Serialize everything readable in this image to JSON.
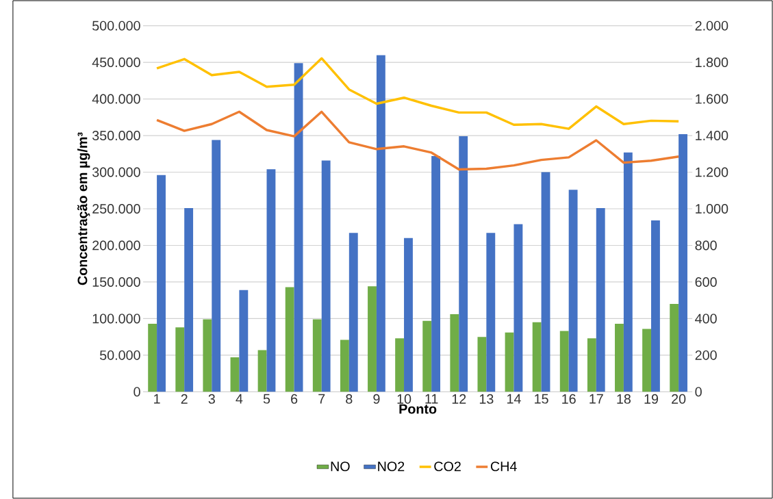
{
  "chart_data": {
    "type": "bar",
    "xlabel": "Ponto",
    "ylabel": "Concentração em µg/m³",
    "categories": [
      "1",
      "2",
      "3",
      "4",
      "5",
      "6",
      "7",
      "8",
      "9",
      "10",
      "11",
      "12",
      "13",
      "14",
      "15",
      "16",
      "17",
      "18",
      "19",
      "20"
    ],
    "series": [
      {
        "name": "NO",
        "color": "#70ad47",
        "values": [
          93000,
          88000,
          99000,
          47000,
          57000,
          143000,
          99000,
          71000,
          144000,
          73000,
          97000,
          106000,
          75000,
          81000,
          95000,
          83000,
          73000,
          93000,
          86000,
          120000
        ]
      },
      {
        "name": "NO2",
        "color": "#4472c4",
        "values": [
          296000,
          251000,
          344000,
          139000,
          304000,
          449000,
          316000,
          217000,
          460000,
          210000,
          322000,
          349000,
          217000,
          229000,
          300000,
          276000,
          251000,
          327000,
          234000,
          352000
        ]
      },
      {
        "name": "CO2",
        "type": "line",
        "axis": "y2",
        "color": "#ffc000",
        "values": [
          1767,
          1818,
          1730,
          1748,
          1667,
          1678,
          1822,
          1652,
          1574,
          1607,
          1563,
          1526,
          1526,
          1459,
          1463,
          1437,
          1559,
          1463,
          1481,
          1478
        ]
      },
      {
        "name": "CH4",
        "type": "line",
        "axis": "y2",
        "color": "#ed7d31",
        "values": [
          1485,
          1426,
          1463,
          1530,
          1430,
          1396,
          1530,
          1363,
          1326,
          1341,
          1307,
          1215,
          1219,
          1237,
          1267,
          1281,
          1374,
          1252,
          1263,
          1285
        ]
      }
    ],
    "ylim": [
      0,
      500000
    ],
    "yticks": [
      0,
      {
        "value": 50000,
        "label": "50.000"
      },
      {
        "value": 100000,
        "label": "100.000"
      },
      {
        "value": 150000,
        "label": "150.000"
      },
      {
        "value": 200000,
        "label": "200.000"
      },
      {
        "value": 250000,
        "label": "250.000"
      },
      {
        "value": 300000,
        "label": "300.000"
      },
      {
        "value": 350000,
        "label": "350.000"
      },
      {
        "value": 400000,
        "label": "400.000"
      },
      {
        "value": 450000,
        "label": "450.000"
      },
      {
        "value": 500000,
        "label": "500.000"
      }
    ],
    "y2lim": [
      0,
      2000
    ],
    "y2ticks": [
      0,
      200,
      400,
      600,
      800,
      {
        "value": 1000,
        "label": "1.000"
      },
      {
        "value": 1200,
        "label": "1.200"
      },
      {
        "value": 1400,
        "label": "1.400"
      },
      {
        "value": 1600,
        "label": "1.600"
      },
      {
        "value": 1800,
        "label": "1.800"
      },
      {
        "value": 2000,
        "label": "2.000"
      }
    ],
    "grid": "y",
    "legend": "bottom"
  }
}
